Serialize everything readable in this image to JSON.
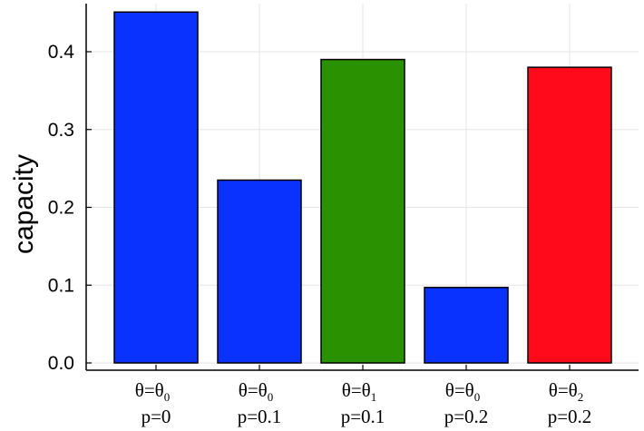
{
  "chart_data": {
    "type": "bar",
    "title": "",
    "xlabel": "",
    "ylabel": "capacity",
    "ylim": [
      0,
      0.45
    ],
    "yticks": [
      "0.0",
      "0.1",
      "0.2",
      "0.3",
      "0.4"
    ],
    "grid": true,
    "categories": [
      {
        "theta_main": "θ=θ",
        "theta_sub": "0",
        "p": "p=0"
      },
      {
        "theta_main": "θ=θ",
        "theta_sub": "0",
        "p": "p=0.1"
      },
      {
        "theta_main": "θ=θ",
        "theta_sub": "1",
        "p": "p=0.1"
      },
      {
        "theta_main": "θ=θ",
        "theta_sub": "0",
        "p": "p=0.2"
      },
      {
        "theta_main": "θ=θ",
        "theta_sub": "2",
        "p": "p=0.2"
      }
    ],
    "values": [
      0.451,
      0.235,
      0.39,
      0.097,
      0.38
    ],
    "colors": [
      "#0a32ff",
      "#0a32ff",
      "#2a9200",
      "#0a32ff",
      "#ff0a1a"
    ]
  }
}
